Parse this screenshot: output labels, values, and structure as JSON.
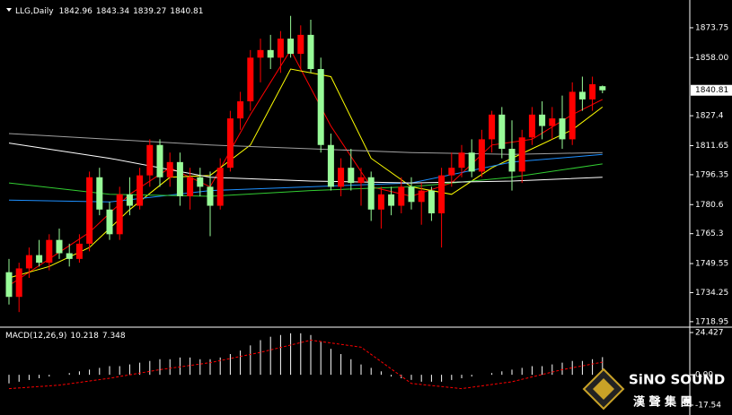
{
  "chart_data": [
    {
      "type": "candlestick",
      "title": "LLG,Daily",
      "categories": [
        null,
        null,
        null,
        null,
        null,
        null,
        null,
        null,
        null,
        null,
        null,
        null,
        null,
        null,
        null,
        null,
        null,
        null,
        null,
        null,
        null,
        null,
        null,
        null,
        null,
        null,
        null,
        null,
        null,
        null,
        null,
        null,
        null,
        null,
        null,
        null,
        null,
        null,
        null,
        null,
        null,
        null,
        null,
        null,
        null,
        null,
        null,
        null,
        null,
        null,
        null,
        null,
        null,
        null,
        null,
        null,
        null,
        null,
        null,
        null
      ],
      "open": [
        1745,
        1732,
        1747,
        1754,
        1750,
        1762,
        1755,
        1752,
        1760,
        1795,
        1778,
        1765,
        1786,
        1780,
        1796,
        1812,
        1795,
        1803,
        1785,
        1795,
        1790,
        1780,
        1800,
        1826,
        1835,
        1858,
        1862,
        1858,
        1868,
        1860,
        1870,
        1852,
        1812,
        1790,
        1800,
        1792,
        1795,
        1778,
        1786,
        1780,
        1790,
        1782,
        1788,
        1776,
        1796,
        1800,
        1808,
        1798,
        1815,
        1828,
        1810,
        1798,
        1816,
        1828,
        1822,
        1826,
        1815,
        1840,
        1836,
        1842.96
      ],
      "high": [
        1752,
        1750,
        1758,
        1762,
        1765,
        1768,
        1760,
        1765,
        1798,
        1800,
        1782,
        1790,
        1795,
        1800,
        1815,
        1815,
        1808,
        1808,
        1800,
        1800,
        1798,
        1805,
        1830,
        1840,
        1862,
        1868,
        1870,
        1872,
        1880,
        1875,
        1878,
        1858,
        1818,
        1805,
        1810,
        1800,
        1798,
        1790,
        1790,
        1795,
        1795,
        1792,
        1790,
        1800,
        1808,
        1812,
        1815,
        1820,
        1830,
        1832,
        1825,
        1820,
        1832,
        1835,
        1832,
        1838,
        1845,
        1848,
        1848,
        1843.34
      ],
      "low": [
        1728,
        1724,
        1742,
        1748,
        1746,
        1752,
        1748,
        1750,
        1756,
        1775,
        1762,
        1762,
        1775,
        1778,
        1790,
        1790,
        1790,
        1780,
        1778,
        1785,
        1764,
        1778,
        1798,
        1820,
        1830,
        1845,
        1852,
        1850,
        1858,
        1852,
        1850,
        1808,
        1788,
        1785,
        1788,
        1780,
        1772,
        1768,
        1775,
        1776,
        1778,
        1770,
        1772,
        1758,
        1790,
        1795,
        1795,
        1795,
        1808,
        1805,
        1788,
        1792,
        1812,
        1815,
        1815,
        1810,
        1812,
        1830,
        1830,
        1839.27
      ],
      "close": [
        1732,
        1747,
        1754,
        1750,
        1762,
        1755,
        1752,
        1760,
        1795,
        1778,
        1765,
        1786,
        1780,
        1796,
        1812,
        1795,
        1803,
        1785,
        1795,
        1790,
        1780,
        1800,
        1826,
        1835,
        1858,
        1862,
        1858,
        1868,
        1860,
        1870,
        1852,
        1812,
        1790,
        1800,
        1792,
        1795,
        1778,
        1786,
        1780,
        1790,
        1782,
        1788,
        1776,
        1796,
        1800,
        1808,
        1798,
        1815,
        1828,
        1810,
        1798,
        1816,
        1828,
        1822,
        1826,
        1815,
        1840,
        1836,
        1844,
        1840.81
      ],
      "up_color": "#ff0000",
      "down_color": "#98fb98",
      "series": [
        {
          "color": "#ff0000",
          "x": [
            0,
            4,
            8,
            12,
            16,
            20,
            24,
            28,
            32,
            36,
            40,
            44,
            48,
            52,
            56,
            59
          ],
          "values": [
            1738,
            1752,
            1766,
            1786,
            1800,
            1790,
            1828,
            1862,
            1822,
            1790,
            1785,
            1792,
            1812,
            1815,
            1828,
            1836
          ]
        },
        {
          "color": "#ffff00",
          "x": [
            0,
            4,
            8,
            12,
            16,
            20,
            24,
            28,
            32,
            36,
            40,
            44,
            48,
            52,
            56,
            59
          ],
          "values": [
            1742,
            1748,
            1758,
            1778,
            1795,
            1796,
            1812,
            1852,
            1848,
            1805,
            1790,
            1786,
            1800,
            1810,
            1820,
            1832
          ]
        },
        {
          "color": "#1e90ff",
          "x": [
            0,
            10,
            20,
            30,
            40,
            50,
            59
          ],
          "values": [
            1783,
            1782,
            1788,
            1790,
            1792,
            1803,
            1807
          ]
        },
        {
          "color": "#32cd32",
          "x": [
            0,
            10,
            20,
            30,
            40,
            50,
            59
          ],
          "values": [
            1792,
            1786,
            1785,
            1788,
            1790,
            1795,
            1802
          ]
        },
        {
          "color": "#ffffff",
          "x": [
            0,
            10,
            20,
            30,
            40,
            50,
            59
          ],
          "values": [
            1813,
            1805,
            1795,
            1793,
            1792,
            1793,
            1795
          ]
        },
        {
          "color": "#a0a0a0",
          "x": [
            0,
            10,
            20,
            30,
            40,
            50,
            59
          ],
          "values": [
            1818,
            1815,
            1812,
            1810,
            1808,
            1807,
            1808
          ]
        }
      ],
      "ylim": [
        1717,
        1886
      ],
      "yticks": [
        1873.75,
        {
          "value": 1858,
          "label": "1858.00"
        },
        1827.4,
        1811.65,
        1796.35,
        1780.6,
        1765.3,
        1749.55,
        1734.25,
        1718.95
      ]
    },
    {
      "type": "combo",
      "title": "MACD(12,26,9)",
      "series": [
        {
          "type": "histogram",
          "color": "#ffffff",
          "values": [
            -5,
            -4,
            -3,
            -2,
            -1,
            0,
            1,
            2,
            3,
            4,
            5,
            5,
            6,
            7,
            8,
            9,
            9,
            10,
            10,
            9,
            9,
            10,
            12,
            14,
            17,
            20,
            22,
            23,
            24,
            24,
            23,
            19,
            15,
            12,
            9,
            6,
            4,
            2,
            -1,
            -2,
            -3,
            -4,
            -4,
            -4,
            -3,
            -2,
            -1,
            0,
            1,
            2,
            3,
            4,
            5,
            5,
            6,
            7,
            8,
            8,
            9,
            10.218
          ]
        },
        {
          "type": "line",
          "color": "#ff0000",
          "dashed": true,
          "x": [
            0,
            5,
            10,
            15,
            20,
            25,
            30,
            35,
            40,
            45,
            50,
            55,
            59
          ],
          "values": [
            -8,
            -6,
            -2,
            3,
            7,
            13,
            20,
            16,
            -5,
            -8,
            -4,
            3,
            7.348
          ]
        }
      ],
      "ylim": [
        -17.54,
        24.427
      ],
      "yticks": [
        24.427,
        {
          "value": 0,
          "label": "0.00"
        },
        -17.54
      ]
    }
  ],
  "watermark": {
    "name": "SiNO SOUND",
    "subtitle": "漢 聲 集 團"
  }
}
